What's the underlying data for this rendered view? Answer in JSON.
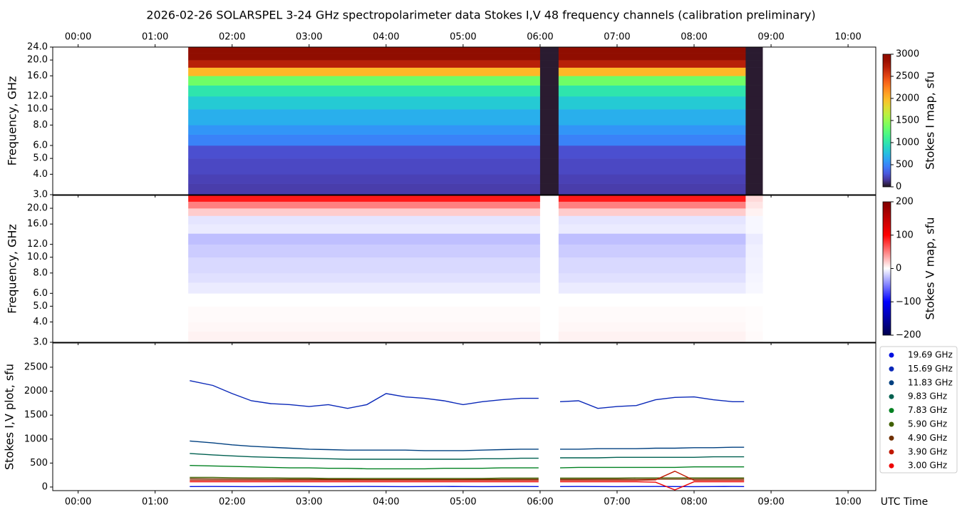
{
  "title": "2026-02-26  SOLARSPEL  3-24 GHz spectropolarimeter data   Stokes I,V   48 frequency channels   (calibration preliminary)",
  "chart_data": [
    {
      "type": "heatmap",
      "ylabel": "Frequency, GHz",
      "zlabel": "Stokes I map, sfu",
      "colormap": "turbo",
      "log_y": true,
      "xlim": [
        -0.33,
        10.36
      ],
      "ylim": [
        3,
        24
      ],
      "xticks": [
        {
          "value": 0,
          "label": "00:00"
        },
        {
          "value": 1,
          "label": "01:00"
        },
        {
          "value": 2,
          "label": "02:00"
        },
        {
          "value": 3,
          "label": "03:00"
        },
        {
          "value": 4,
          "label": "04:00"
        },
        {
          "value": 5,
          "label": "05:00"
        },
        {
          "value": 6,
          "label": "06:00"
        },
        {
          "value": 7,
          "label": "07:00"
        },
        {
          "value": 8,
          "label": "08:00"
        },
        {
          "value": 9,
          "label": "09:00"
        },
        {
          "value": 10,
          "label": "10:00"
        }
      ],
      "yticks": [
        {
          "value": 3,
          "label": "3.0"
        },
        {
          "value": 4,
          "label": "4.0"
        },
        {
          "value": 5,
          "label": "5.0"
        },
        {
          "value": 6,
          "label": "6.0"
        },
        {
          "value": 8,
          "label": "8.0"
        },
        {
          "value": 10,
          "label": "10.0"
        },
        {
          "value": 12,
          "label": "12.0"
        },
        {
          "value": 16,
          "label": "16.0"
        },
        {
          "value": 20,
          "label": "20.0"
        },
        {
          "value": 24,
          "label": "24.0"
        }
      ],
      "zlim": [
        0,
        3000
      ],
      "zticks": [
        0,
        500,
        1000,
        1500,
        2000,
        2500,
        3000
      ],
      "x_edges": [
        1.43,
        6.0,
        6.24,
        8.67,
        8.89
      ],
      "y_edges": [
        3,
        3.5,
        4,
        5,
        6,
        7,
        8,
        10,
        12,
        14,
        16,
        18,
        20,
        22,
        24
      ],
      "z": [
        [
          180,
          20,
          180,
          20
        ],
        [
          200,
          20,
          200,
          20
        ],
        [
          230,
          20,
          230,
          20
        ],
        [
          260,
          20,
          260,
          20
        ],
        [
          480,
          20,
          480,
          20
        ],
        [
          560,
          20,
          560,
          20
        ],
        [
          680,
          20,
          680,
          20
        ],
        [
          820,
          20,
          820,
          20
        ],
        [
          1000,
          20,
          1000,
          20
        ],
        [
          1350,
          20,
          1350,
          20
        ],
        [
          2000,
          20,
          2000,
          20
        ],
        [
          2700,
          20,
          2700,
          20
        ],
        [
          3000,
          20,
          3000,
          20
        ],
        [
          3000,
          20,
          3000,
          20
        ]
      ]
    },
    {
      "type": "heatmap",
      "ylabel": "Frequency, GHz",
      "zlabel": "Stokes V map, sfu",
      "colormap": "seismic",
      "log_y": true,
      "xlim": [
        -0.33,
        10.36
      ],
      "ylim": [
        3,
        24
      ],
      "yticks": [
        {
          "value": 3,
          "label": "3.0"
        },
        {
          "value": 4,
          "label": "4.0"
        },
        {
          "value": 5,
          "label": "5.0"
        },
        {
          "value": 6,
          "label": "6.0"
        },
        {
          "value": 8,
          "label": "8.0"
        },
        {
          "value": 10,
          "label": "10.0"
        },
        {
          "value": 12,
          "label": "12.0"
        },
        {
          "value": 16,
          "label": "16.0"
        },
        {
          "value": 20,
          "label": "20.0"
        }
      ],
      "zlim": [
        -200,
        200
      ],
      "zticks": [
        {
          "value": -200,
          "label": "−200"
        },
        {
          "value": -100,
          "label": "−100"
        },
        0,
        100,
        200
      ],
      "x_edges": [
        1.43,
        6.0,
        6.24,
        8.67,
        8.89
      ],
      "y_edges": [
        3,
        3.5,
        4,
        5,
        6,
        7,
        8,
        10,
        12,
        14,
        16,
        18,
        20,
        22,
        24
      ],
      "z": [
        [
          5,
          0,
          5,
          2
        ],
        [
          3,
          0,
          3,
          1
        ],
        [
          2,
          0,
          2,
          1
        ],
        [
          0,
          0,
          0,
          0
        ],
        [
          -8,
          0,
          -8,
          -3
        ],
        [
          -12,
          0,
          -12,
          -4
        ],
        [
          -15,
          0,
          -15,
          -5
        ],
        [
          -20,
          0,
          -20,
          -6
        ],
        [
          -25,
          0,
          -25,
          -8
        ],
        [
          -8,
          0,
          -8,
          -3
        ],
        [
          -10,
          0,
          -10,
          -3
        ],
        [
          20,
          0,
          20,
          5
        ],
        [
          50,
          0,
          50,
          10
        ],
        [
          90,
          0,
          90,
          15
        ]
      ]
    },
    {
      "type": "line",
      "ylabel": "Stokes I,V plot, sfu",
      "xlabel": "UTC Time",
      "xlim": [
        -0.33,
        10.36
      ],
      "ylim": [
        -75,
        3005
      ],
      "xticks": [
        {
          "value": 0,
          "label": "00:00"
        },
        {
          "value": 1,
          "label": "01:00"
        },
        {
          "value": 2,
          "label": "02:00"
        },
        {
          "value": 3,
          "label": "03:00"
        },
        {
          "value": 4,
          "label": "04:00"
        },
        {
          "value": 5,
          "label": "05:00"
        },
        {
          "value": 6,
          "label": "06:00"
        },
        {
          "value": 7,
          "label": "07:00"
        },
        {
          "value": 8,
          "label": "08:00"
        },
        {
          "value": 9,
          "label": "09:00"
        },
        {
          "value": 10,
          "label": "10:00"
        }
      ],
      "yticks": [
        0,
        500,
        1000,
        1500,
        2000,
        2500
      ],
      "x": [
        1.45,
        1.75,
        2.0,
        2.25,
        2.5,
        2.75,
        3.0,
        3.25,
        3.5,
        3.75,
        4.0,
        4.25,
        4.5,
        4.75,
        5.0,
        5.25,
        5.5,
        5.75,
        5.98,
        6.12,
        6.26,
        6.5,
        6.75,
        7.0,
        7.25,
        7.5,
        7.75,
        8.0,
        8.25,
        8.5,
        8.65
      ],
      "series": [
        {
          "name": "19.69 GHz",
          "color": "#0010e0",
          "values": [
            10,
            12,
            10,
            8,
            10,
            12,
            10,
            8,
            10,
            12,
            10,
            8,
            10,
            12,
            10,
            8,
            10,
            12,
            10,
            null,
            10,
            12,
            10,
            8,
            10,
            12,
            10,
            8,
            10,
            12,
            10
          ]
        },
        {
          "name": "15.69 GHz",
          "color": "#0a28b8",
          "values": [
            2220,
            2120,
            1950,
            1800,
            1740,
            1720,
            1680,
            1720,
            1640,
            1720,
            1950,
            1880,
            1850,
            1800,
            1720,
            1780,
            1820,
            1850,
            1850,
            null,
            1780,
            1800,
            1640,
            1680,
            1700,
            1820,
            1870,
            1880,
            1820,
            1780,
            1780
          ]
        },
        {
          "name": "11.83 GHz",
          "color": "#004080",
          "values": [
            960,
            920,
            880,
            850,
            830,
            810,
            790,
            780,
            770,
            770,
            770,
            770,
            760,
            760,
            760,
            770,
            780,
            790,
            790,
            null,
            790,
            790,
            800,
            800,
            800,
            810,
            810,
            820,
            820,
            830,
            830
          ]
        },
        {
          "name": "9.83 GHz",
          "color": "#006050",
          "values": [
            700,
            670,
            650,
            630,
            620,
            610,
            600,
            590,
            580,
            580,
            580,
            580,
            580,
            580,
            580,
            590,
            590,
            600,
            600,
            null,
            610,
            610,
            610,
            620,
            620,
            620,
            620,
            620,
            630,
            630,
            630
          ]
        },
        {
          "name": "7.83 GHz",
          "color": "#008020",
          "values": [
            450,
            440,
            430,
            420,
            410,
            400,
            400,
            390,
            390,
            380,
            380,
            380,
            380,
            390,
            390,
            390,
            400,
            400,
            400,
            null,
            400,
            410,
            410,
            410,
            410,
            410,
            410,
            420,
            420,
            420,
            420
          ]
        },
        {
          "name": "5.90 GHz",
          "color": "#406000",
          "values": [
            200,
            200,
            195,
            190,
            190,
            185,
            185,
            180,
            180,
            180,
            180,
            180,
            180,
            180,
            180,
            180,
            185,
            185,
            185,
            null,
            185,
            185,
            185,
            185,
            190,
            190,
            190,
            190,
            190,
            190,
            190
          ]
        },
        {
          "name": "4.90 GHz",
          "color": "#703000",
          "values": [
            170,
            168,
            166,
            164,
            162,
            160,
            160,
            158,
            158,
            156,
            156,
            156,
            156,
            156,
            156,
            158,
            158,
            160,
            160,
            null,
            160,
            160,
            162,
            162,
            162,
            164,
            164,
            164,
            166,
            166,
            166
          ]
        },
        {
          "name": "3.90 GHz",
          "color": "#c01800",
          "values": [
            140,
            140,
            140,
            140,
            140,
            140,
            140,
            140,
            140,
            140,
            140,
            140,
            140,
            140,
            140,
            140,
            140,
            140,
            140,
            null,
            140,
            140,
            140,
            140,
            140,
            150,
            330,
            140,
            140,
            140,
            140
          ]
        },
        {
          "name": "3.00 GHz",
          "color": "#ee0000",
          "values": [
            110,
            110,
            110,
            110,
            110,
            110,
            110,
            110,
            110,
            110,
            110,
            110,
            110,
            110,
            110,
            110,
            110,
            110,
            110,
            null,
            110,
            110,
            110,
            110,
            110,
            100,
            -60,
            110,
            110,
            110,
            110
          ]
        }
      ]
    }
  ]
}
